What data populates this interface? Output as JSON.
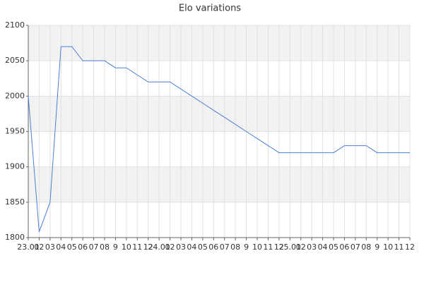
{
  "chart_data": {
    "type": "line",
    "title": "Elo variations",
    "categories": [
      "23.01",
      "02",
      "03",
      "04",
      "05",
      "06",
      "07",
      "08",
      "9",
      "10",
      "11",
      "12",
      "24.01",
      "02",
      "03",
      "04",
      "05",
      "06",
      "07",
      "08",
      "9",
      "10",
      "11",
      "12",
      "25.01",
      "02",
      "03",
      "04",
      "05",
      "06",
      "07",
      "08",
      "9",
      "10",
      "11",
      "12"
    ],
    "series": [
      {
        "name": "Elo",
        "color": "#4a7fd8",
        "values": [
          2000,
          1808,
          1850,
          2070,
          2070,
          2050,
          2050,
          2050,
          2040,
          2040,
          2030,
          2020,
          2020,
          2020,
          2010,
          2000,
          1990,
          1980,
          1970,
          1960,
          1950,
          1940,
          1930,
          1920,
          1920,
          1920,
          1920,
          1920,
          1920,
          1930,
          1930,
          1930,
          1920,
          1920,
          1920,
          1920
        ]
      }
    ],
    "ylim": [
      1800,
      2100
    ],
    "yticks": [
      1800,
      1850,
      1900,
      1950,
      2000,
      2050,
      2100
    ],
    "grid": true
  }
}
